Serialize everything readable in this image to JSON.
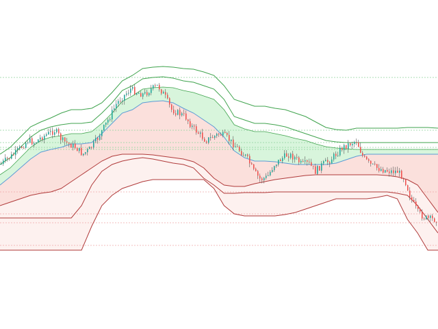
{
  "chart_data": {
    "type": "candlestick",
    "title": "",
    "xlabel": "",
    "ylabel": "",
    "ylim": [
      0,
      480
    ],
    "grid": false,
    "legend": "none",
    "colors": {
      "up_candle": "#26a69a",
      "down_candle": "#ef5350",
      "wick": "#555555",
      "upper_band": "#3fa34d",
      "lower_band": "#b03a3a",
      "mid_up_line": "#5b9bd5",
      "mid_down_line": "#d9534f",
      "fill_green": "#d8f5dc",
      "fill_red": "#fbe0dc",
      "fill_pink": "#fdf1ef",
      "level_green": "#8fd39a",
      "level_red": "#f0a6a6"
    },
    "x": [
      0,
      10,
      20,
      30,
      40,
      50,
      60,
      70,
      80,
      90,
      100,
      110,
      120,
      130,
      140,
      150,
      160,
      170,
      180,
      190,
      200,
      210,
      220,
      230,
      240,
      250,
      260,
      270,
      280,
      290,
      300,
      310,
      320,
      330,
      340,
      350,
      360,
      370,
      380,
      390,
      400,
      410,
      420,
      430,
      440,
      450,
      460,
      470,
      480,
      490,
      500,
      510,
      520,
      530,
      540,
      550,
      560,
      570,
      580,
      590,
      600,
      610,
      620,
      630
    ],
    "price": [
      240,
      232,
      225,
      215,
      205,
      208,
      200,
      195,
      190,
      205,
      210,
      215,
      225,
      218,
      205,
      188,
      170,
      150,
      140,
      130,
      135,
      138,
      130,
      125,
      140,
      160,
      165,
      170,
      185,
      195,
      205,
      200,
      195,
      200,
      210,
      220,
      230,
      250,
      262,
      258,
      240,
      232,
      225,
      230,
      240,
      238,
      250,
      240,
      235,
      225,
      215,
      210,
      205,
      230,
      240,
      245,
      248,
      250,
      250,
      260,
      290,
      310,
      318,
      320
    ],
    "bands": {
      "upper_outer": [
        225,
        215,
        200,
        185,
        178,
        172,
        165,
        160,
        160,
        158,
        150,
        135,
        118,
        110,
        100,
        98,
        97,
        98,
        100,
        101,
        105,
        110,
        125,
        145,
        150,
        155,
        155,
        158,
        160,
        165,
        170,
        178,
        186,
        189,
        190,
        187,
        187,
        187,
        187,
        187,
        186,
        186,
        186,
        187
      ],
      "upper_mid": [
        240,
        230,
        215,
        200,
        190,
        185,
        182,
        180,
        180,
        178,
        165,
        150,
        132,
        125,
        115,
        113,
        112,
        114,
        118,
        120,
        125,
        130,
        145,
        170,
        175,
        180,
        180,
        182,
        185,
        190,
        195,
        200,
        205,
        207,
        208,
        208,
        208,
        208,
        208,
        208,
        208,
        208,
        208,
        208
      ],
      "upper_inner": [
        255,
        245,
        230,
        215,
        205,
        200,
        198,
        195,
        195,
        192,
        180,
        165,
        148,
        140,
        130,
        128,
        127,
        128,
        132,
        135,
        140,
        145,
        160,
        182,
        188,
        192,
        192,
        195,
        198,
        202,
        205,
        210,
        214,
        216,
        217,
        218,
        218,
        218,
        218,
        218,
        218,
        218,
        218,
        218
      ],
      "mid_line": [
        270,
        258,
        245,
        232,
        222,
        218,
        215,
        210,
        210,
        208,
        195,
        180,
        165,
        160,
        150,
        148,
        147,
        150,
        158,
        165,
        175,
        185,
        200,
        220,
        230,
        235,
        235,
        236,
        238,
        240,
        240,
        240,
        240,
        238,
        233,
        228,
        225,
        225,
        225,
        225,
        225,
        225,
        225,
        225
      ],
      "lower_inner": [
        300,
        295,
        290,
        285,
        282,
        280,
        275,
        265,
        255,
        245,
        235,
        228,
        225,
        225,
        225,
        226,
        228,
        230,
        232,
        236,
        245,
        260,
        270,
        272,
        272,
        268,
        265,
        262,
        260,
        258,
        256,
        255,
        255,
        255,
        255,
        255,
        255,
        255,
        256,
        258,
        262,
        270,
        290,
        310
      ],
      "lower_mid": [
        318,
        318,
        318,
        318,
        318,
        318,
        318,
        318,
        300,
        270,
        250,
        240,
        235,
        232,
        230,
        232,
        235,
        238,
        240,
        245,
        260,
        270,
        282,
        282,
        281,
        281,
        281,
        280,
        280,
        280,
        280,
        280,
        280,
        280,
        280,
        280,
        280,
        280,
        280,
        282,
        285,
        300,
        320,
        340
      ],
      "lower_outer": [
        365,
        365,
        365,
        365,
        365,
        365,
        365,
        365,
        365,
        330,
        300,
        285,
        275,
        270,
        265,
        262,
        262,
        262,
        262,
        262,
        262,
        275,
        300,
        312,
        315,
        315,
        315,
        315,
        313,
        310,
        305,
        300,
        295,
        290,
        290,
        290,
        290,
        288,
        285,
        290,
        320,
        340,
        365,
        365
      ]
    },
    "levels": {
      "green": [
        113,
        190,
        208,
        215,
        218
      ],
      "red": [
        280,
        312,
        325,
        358
      ]
    },
    "crossing": {
      "from": "band",
      "to": "price"
    }
  }
}
